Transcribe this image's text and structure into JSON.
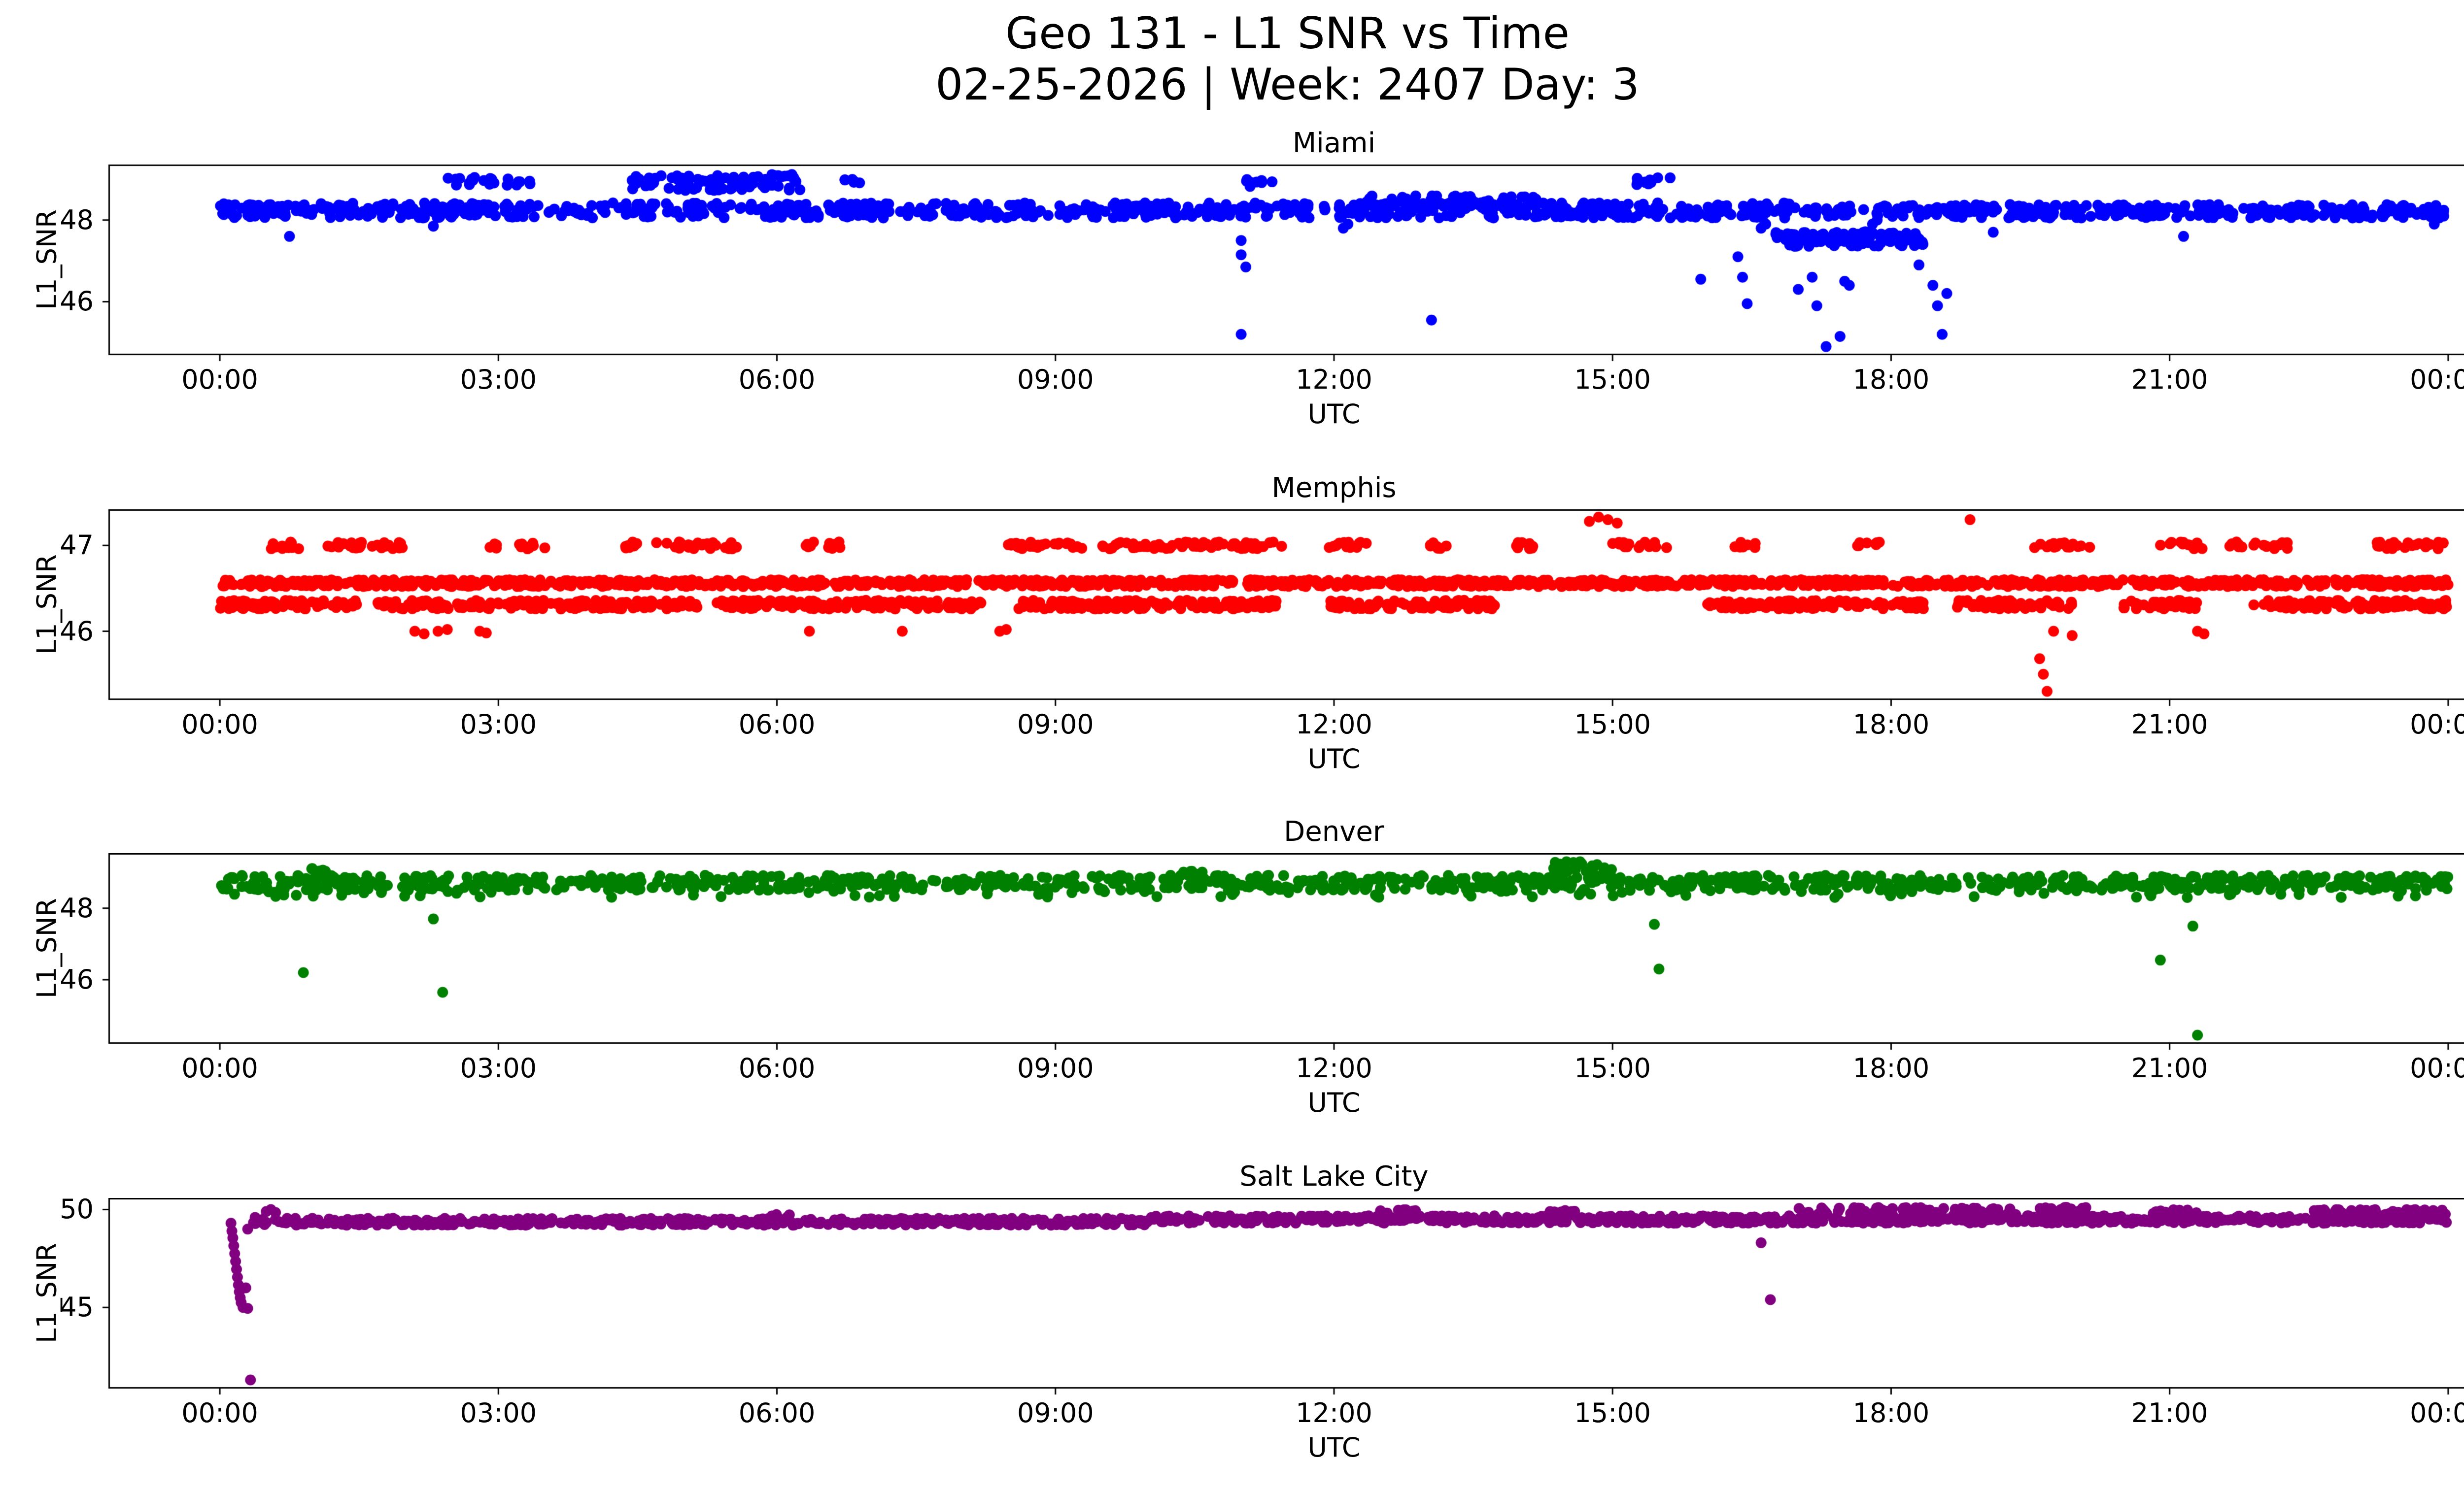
{
  "figure": {
    "title": "Geo 131 - L1 SNR vs Time",
    "subtitle": "02-25-2026 | Week: 2407 Day: 3"
  },
  "chart_data": [
    {
      "type": "scatter",
      "title": "Miami",
      "color": "#0000ff",
      "xlabel": "UTC",
      "ylabel": "L1_SNR",
      "xlim": [
        -1.2,
        25.2
      ],
      "ylim": [
        44.69,
        49.36
      ],
      "xticks": [
        0,
        3,
        6,
        9,
        12,
        15,
        18,
        21,
        24
      ],
      "xtick_labels": [
        "00:00",
        "03:00",
        "06:00",
        "09:00",
        "12:00",
        "15:00",
        "18:00",
        "21:00",
        "00:00"
      ],
      "yticks": [
        46,
        48
      ],
      "grid": false,
      "legend": "none",
      "bands": [
        {
          "t0": 0,
          "t1": 16.95,
          "y0": 48.05,
          "y1": 48.42,
          "n": 820
        },
        {
          "t0": 18.1,
          "t1": 24,
          "y0": 48.05,
          "y1": 48.38,
          "n": 300
        },
        {
          "t0": 16.95,
          "t1": 18.1,
          "y0": 48.08,
          "y1": 48.35,
          "n": 35
        },
        {
          "t0": 16.75,
          "t1": 18.35,
          "y0": 47.35,
          "y1": 47.72,
          "n": 115
        },
        {
          "t0": 2.45,
          "t1": 3.35,
          "y0": 48.85,
          "y1": 49.05,
          "n": 22
        },
        {
          "t0": 4.4,
          "t1": 6.25,
          "y0": 48.72,
          "y1": 49.12,
          "n": 95
        },
        {
          "t0": 6.7,
          "t1": 6.9,
          "y0": 48.85,
          "y1": 49.0,
          "n": 6
        },
        {
          "t0": 11.05,
          "t1": 11.35,
          "y0": 48.82,
          "y1": 49.0,
          "n": 9
        },
        {
          "t0": 15.25,
          "t1": 15.65,
          "y0": 48.85,
          "y1": 49.05,
          "n": 12
        },
        {
          "t0": 12.3,
          "t1": 14.2,
          "y0": 48.35,
          "y1": 48.6,
          "n": 60
        }
      ],
      "points": [
        [
          0.75,
          47.6
        ],
        [
          2.3,
          47.85
        ],
        [
          11.0,
          47.5
        ],
        [
          11.0,
          47.15
        ],
        [
          11.05,
          46.85
        ],
        [
          11.0,
          45.2
        ],
        [
          12.1,
          47.8
        ],
        [
          12.15,
          47.9
        ],
        [
          13.05,
          45.55
        ],
        [
          15.95,
          46.55
        ],
        [
          16.35,
          47.1
        ],
        [
          16.4,
          46.6
        ],
        [
          16.45,
          45.95
        ],
        [
          16.6,
          47.8
        ],
        [
          16.65,
          47.9
        ],
        [
          17.0,
          46.3
        ],
        [
          17.15,
          46.6
        ],
        [
          17.2,
          45.9
        ],
        [
          17.3,
          44.9
        ],
        [
          17.45,
          45.15
        ],
        [
          17.5,
          46.5
        ],
        [
          17.55,
          46.4
        ],
        [
          17.8,
          47.9
        ],
        [
          17.85,
          48.0
        ],
        [
          18.3,
          46.9
        ],
        [
          18.45,
          46.4
        ],
        [
          18.5,
          45.9
        ],
        [
          18.55,
          45.2
        ],
        [
          18.6,
          46.2
        ],
        [
          19.1,
          47.7
        ],
        [
          21.15,
          47.6
        ],
        [
          23.85,
          47.9
        ]
      ]
    },
    {
      "type": "scatter",
      "title": "Memphis",
      "color": "#ff0000",
      "xlabel": "UTC",
      "ylabel": "L1_SNR",
      "xlim": [
        -1.2,
        25.2
      ],
      "ylim": [
        45.2,
        47.42
      ],
      "xticks": [
        0,
        3,
        6,
        9,
        12,
        15,
        18,
        21,
        24
      ],
      "xtick_labels": [
        "00:00",
        "03:00",
        "06:00",
        "09:00",
        "12:00",
        "15:00",
        "18:00",
        "21:00",
        "00:00"
      ],
      "yticks": [
        46,
        47
      ],
      "grid": false,
      "legend": "none",
      "bands": [
        {
          "t0": 0,
          "t1": 24,
          "y0": 46.52,
          "y1": 46.6,
          "n": 1500
        },
        {
          "t0": 0,
          "t1": 1.5,
          "y0": 46.26,
          "y1": 46.36,
          "n": 80
        },
        {
          "t0": 1.7,
          "t1": 5.15,
          "y0": 46.26,
          "y1": 46.36,
          "n": 190
        },
        {
          "t0": 5.35,
          "t1": 8.2,
          "y0": 46.26,
          "y1": 46.36,
          "n": 160
        },
        {
          "t0": 8.6,
          "t1": 11.4,
          "y0": 46.26,
          "y1": 46.36,
          "n": 160
        },
        {
          "t0": 11.95,
          "t1": 13.75,
          "y0": 46.26,
          "y1": 46.36,
          "n": 100
        },
        {
          "t0": 16.0,
          "t1": 18.35,
          "y0": 46.26,
          "y1": 46.36,
          "n": 130
        },
        {
          "t0": 18.7,
          "t1": 19.95,
          "y0": 46.26,
          "y1": 46.36,
          "n": 70
        },
        {
          "t0": 20.5,
          "t1": 21.3,
          "y0": 46.26,
          "y1": 46.36,
          "n": 45
        },
        {
          "t0": 21.9,
          "t1": 24,
          "y0": 46.26,
          "y1": 46.36,
          "n": 115
        },
        {
          "t0": 0.55,
          "t1": 0.85,
          "y0": 46.96,
          "y1": 47.04,
          "n": 10
        },
        {
          "t0": 1.15,
          "t1": 2.05,
          "y0": 46.96,
          "y1": 47.04,
          "n": 30
        },
        {
          "t0": 2.85,
          "t1": 3.0,
          "y0": 46.96,
          "y1": 47.04,
          "n": 5
        },
        {
          "t0": 3.2,
          "t1": 3.55,
          "y0": 46.96,
          "y1": 47.04,
          "n": 10
        },
        {
          "t0": 4.3,
          "t1": 4.55,
          "y0": 46.96,
          "y1": 47.04,
          "n": 8
        },
        {
          "t0": 4.65,
          "t1": 5.6,
          "y0": 46.96,
          "y1": 47.04,
          "n": 30
        },
        {
          "t0": 6.3,
          "t1": 6.45,
          "y0": 46.96,
          "y1": 47.04,
          "n": 5
        },
        {
          "t0": 6.55,
          "t1": 6.75,
          "y0": 46.96,
          "y1": 47.04,
          "n": 6
        },
        {
          "t0": 8.45,
          "t1": 9.3,
          "y0": 46.96,
          "y1": 47.04,
          "n": 26
        },
        {
          "t0": 9.5,
          "t1": 11.5,
          "y0": 46.96,
          "y1": 47.04,
          "n": 65
        },
        {
          "t0": 11.9,
          "t1": 12.35,
          "y0": 46.96,
          "y1": 47.04,
          "n": 14
        },
        {
          "t0": 13.0,
          "t1": 13.25,
          "y0": 46.96,
          "y1": 47.04,
          "n": 7
        },
        {
          "t0": 13.9,
          "t1": 14.2,
          "y0": 46.96,
          "y1": 47.04,
          "n": 9
        },
        {
          "t0": 15.0,
          "t1": 15.6,
          "y0": 46.96,
          "y1": 47.04,
          "n": 18
        },
        {
          "t0": 16.3,
          "t1": 16.55,
          "y0": 46.96,
          "y1": 47.04,
          "n": 7
        },
        {
          "t0": 17.6,
          "t1": 17.9,
          "y0": 46.96,
          "y1": 47.04,
          "n": 8
        },
        {
          "t0": 19.5,
          "t1": 20.15,
          "y0": 46.96,
          "y1": 47.04,
          "n": 20
        },
        {
          "t0": 20.9,
          "t1": 21.35,
          "y0": 46.96,
          "y1": 47.04,
          "n": 12
        },
        {
          "t0": 21.6,
          "t1": 22.3,
          "y0": 46.96,
          "y1": 47.04,
          "n": 20
        },
        {
          "t0": 23.15,
          "t1": 23.95,
          "y0": 46.96,
          "y1": 47.04,
          "n": 24
        }
      ],
      "points": [
        [
          2.1,
          46.0
        ],
        [
          2.2,
          45.97
        ],
        [
          2.35,
          46.0
        ],
        [
          2.45,
          46.02
        ],
        [
          2.8,
          46.0
        ],
        [
          2.87,
          45.98
        ],
        [
          6.35,
          46.0
        ],
        [
          7.35,
          46.0
        ],
        [
          8.4,
          46.0
        ],
        [
          8.47,
          46.02
        ],
        [
          19.75,
          46.0
        ],
        [
          21.3,
          46.0
        ],
        [
          21.37,
          45.97
        ],
        [
          14.75,
          47.28
        ],
        [
          14.85,
          47.33
        ],
        [
          14.95,
          47.3
        ],
        [
          15.05,
          47.26
        ],
        [
          18.85,
          47.3
        ],
        [
          19.6,
          45.68
        ],
        [
          19.64,
          45.5
        ],
        [
          19.68,
          45.3
        ],
        [
          19.95,
          45.95
        ]
      ]
    },
    {
      "type": "scatter",
      "title": "Denver",
      "color": "#008000",
      "xlabel": "UTC",
      "ylabel": "L1_SNR",
      "xlim": [
        -1.2,
        25.2
      ],
      "ylim": [
        44.21,
        49.54
      ],
      "xticks": [
        0,
        3,
        6,
        9,
        12,
        15,
        18,
        21,
        24
      ],
      "xtick_labels": [
        "00:00",
        "03:00",
        "06:00",
        "09:00",
        "12:00",
        "15:00",
        "18:00",
        "21:00",
        "00:00"
      ],
      "yticks": [
        46,
        48
      ],
      "grid": false,
      "legend": "none",
      "bands": [
        {
          "t0": 0,
          "t1": 24,
          "y0": 48.5,
          "y1": 48.92,
          "n": 1050
        },
        {
          "t0": 0,
          "t1": 24,
          "y0": 48.3,
          "y1": 48.5,
          "n": 80
        },
        {
          "t0": 14.35,
          "t1": 15.0,
          "y0": 48.95,
          "y1": 49.3,
          "n": 25
        },
        {
          "t0": 0.85,
          "t1": 1.15,
          "y0": 48.95,
          "y1": 49.15,
          "n": 7
        },
        {
          "t0": 10.3,
          "t1": 10.6,
          "y0": 48.95,
          "y1": 49.1,
          "n": 6
        }
      ],
      "points": [
        [
          0.9,
          46.2
        ],
        [
          2.3,
          47.7
        ],
        [
          2.4,
          45.65
        ],
        [
          15.45,
          47.55
        ],
        [
          15.5,
          46.3
        ],
        [
          20.9,
          46.55
        ],
        [
          21.25,
          47.5
        ],
        [
          21.3,
          44.45
        ]
      ]
    },
    {
      "type": "scatter",
      "title": "Salt Lake City",
      "color": "#800080",
      "xlabel": "UTC",
      "ylabel": "L1_SNR",
      "xlim": [
        -1.2,
        25.2
      ],
      "ylim": [
        40.86,
        50.59
      ],
      "xticks": [
        0,
        3,
        6,
        9,
        12,
        15,
        18,
        21,
        24
      ],
      "xtick_labels": [
        "00:00",
        "03:00",
        "06:00",
        "09:00",
        "12:00",
        "15:00",
        "18:00",
        "21:00",
        "00:00"
      ],
      "yticks": [
        45,
        50
      ],
      "grid": false,
      "legend": "none",
      "bands": [
        {
          "t0": 0.35,
          "t1": 10,
          "y0": 49.2,
          "y1": 49.55,
          "n": 520
        },
        {
          "t0": 10,
          "t1": 24,
          "y0": 49.3,
          "y1": 49.68,
          "n": 760
        },
        {
          "t0": 12.5,
          "t1": 12.9,
          "y0": 49.75,
          "y1": 50.0,
          "n": 14
        },
        {
          "t0": 14.3,
          "t1": 14.6,
          "y0": 49.75,
          "y1": 49.95,
          "n": 10
        },
        {
          "t0": 17.0,
          "t1": 19.35,
          "y0": 49.7,
          "y1": 50.1,
          "n": 90
        },
        {
          "t0": 19.6,
          "t1": 20.1,
          "y0": 49.85,
          "y1": 50.15,
          "n": 24
        },
        {
          "t0": 20.8,
          "t1": 21.35,
          "y0": 49.75,
          "y1": 50.0,
          "n": 18
        },
        {
          "t0": 22.55,
          "t1": 24,
          "y0": 49.65,
          "y1": 50.0,
          "n": 70
        },
        {
          "t0": 5.9,
          "t1": 6.15,
          "y0": 49.6,
          "y1": 49.75,
          "n": 6
        }
      ],
      "points": [
        [
          0.12,
          49.3
        ],
        [
          0.13,
          48.9
        ],
        [
          0.14,
          48.55
        ],
        [
          0.15,
          48.15
        ],
        [
          0.16,
          47.75
        ],
        [
          0.17,
          47.35
        ],
        [
          0.18,
          46.95
        ],
        [
          0.19,
          46.55
        ],
        [
          0.2,
          46.15
        ],
        [
          0.21,
          45.8
        ],
        [
          0.22,
          45.5
        ],
        [
          0.23,
          45.25
        ],
        [
          0.25,
          45.0
        ],
        [
          0.3,
          44.95
        ],
        [
          0.28,
          46.0
        ],
        [
          0.33,
          41.3
        ],
        [
          0.3,
          49.0
        ],
        [
          0.38,
          49.6
        ],
        [
          0.5,
          49.9
        ],
        [
          0.55,
          50.0
        ],
        [
          0.6,
          49.85
        ],
        [
          16.6,
          48.3
        ],
        [
          16.7,
          45.4
        ]
      ]
    }
  ]
}
